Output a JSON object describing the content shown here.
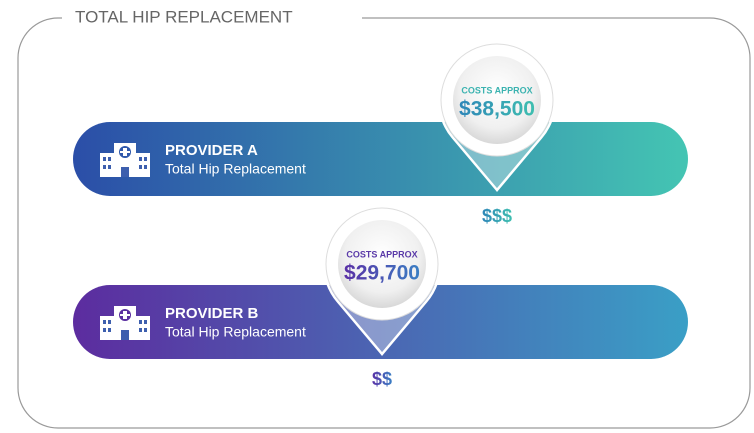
{
  "title": "TOTAL HIP REPLACEMENT",
  "providers": [
    {
      "name": "PROVIDER A",
      "procedure": "Total Hip Replacement",
      "cost_label": "COSTS APPROX",
      "cost": "$38,500",
      "price_level": "$$$"
    },
    {
      "name": "PROVIDER B",
      "procedure": "Total Hip Replacement",
      "cost_label": "COSTS APPROX",
      "cost": "$29,700",
      "price_level": "$$"
    }
  ]
}
